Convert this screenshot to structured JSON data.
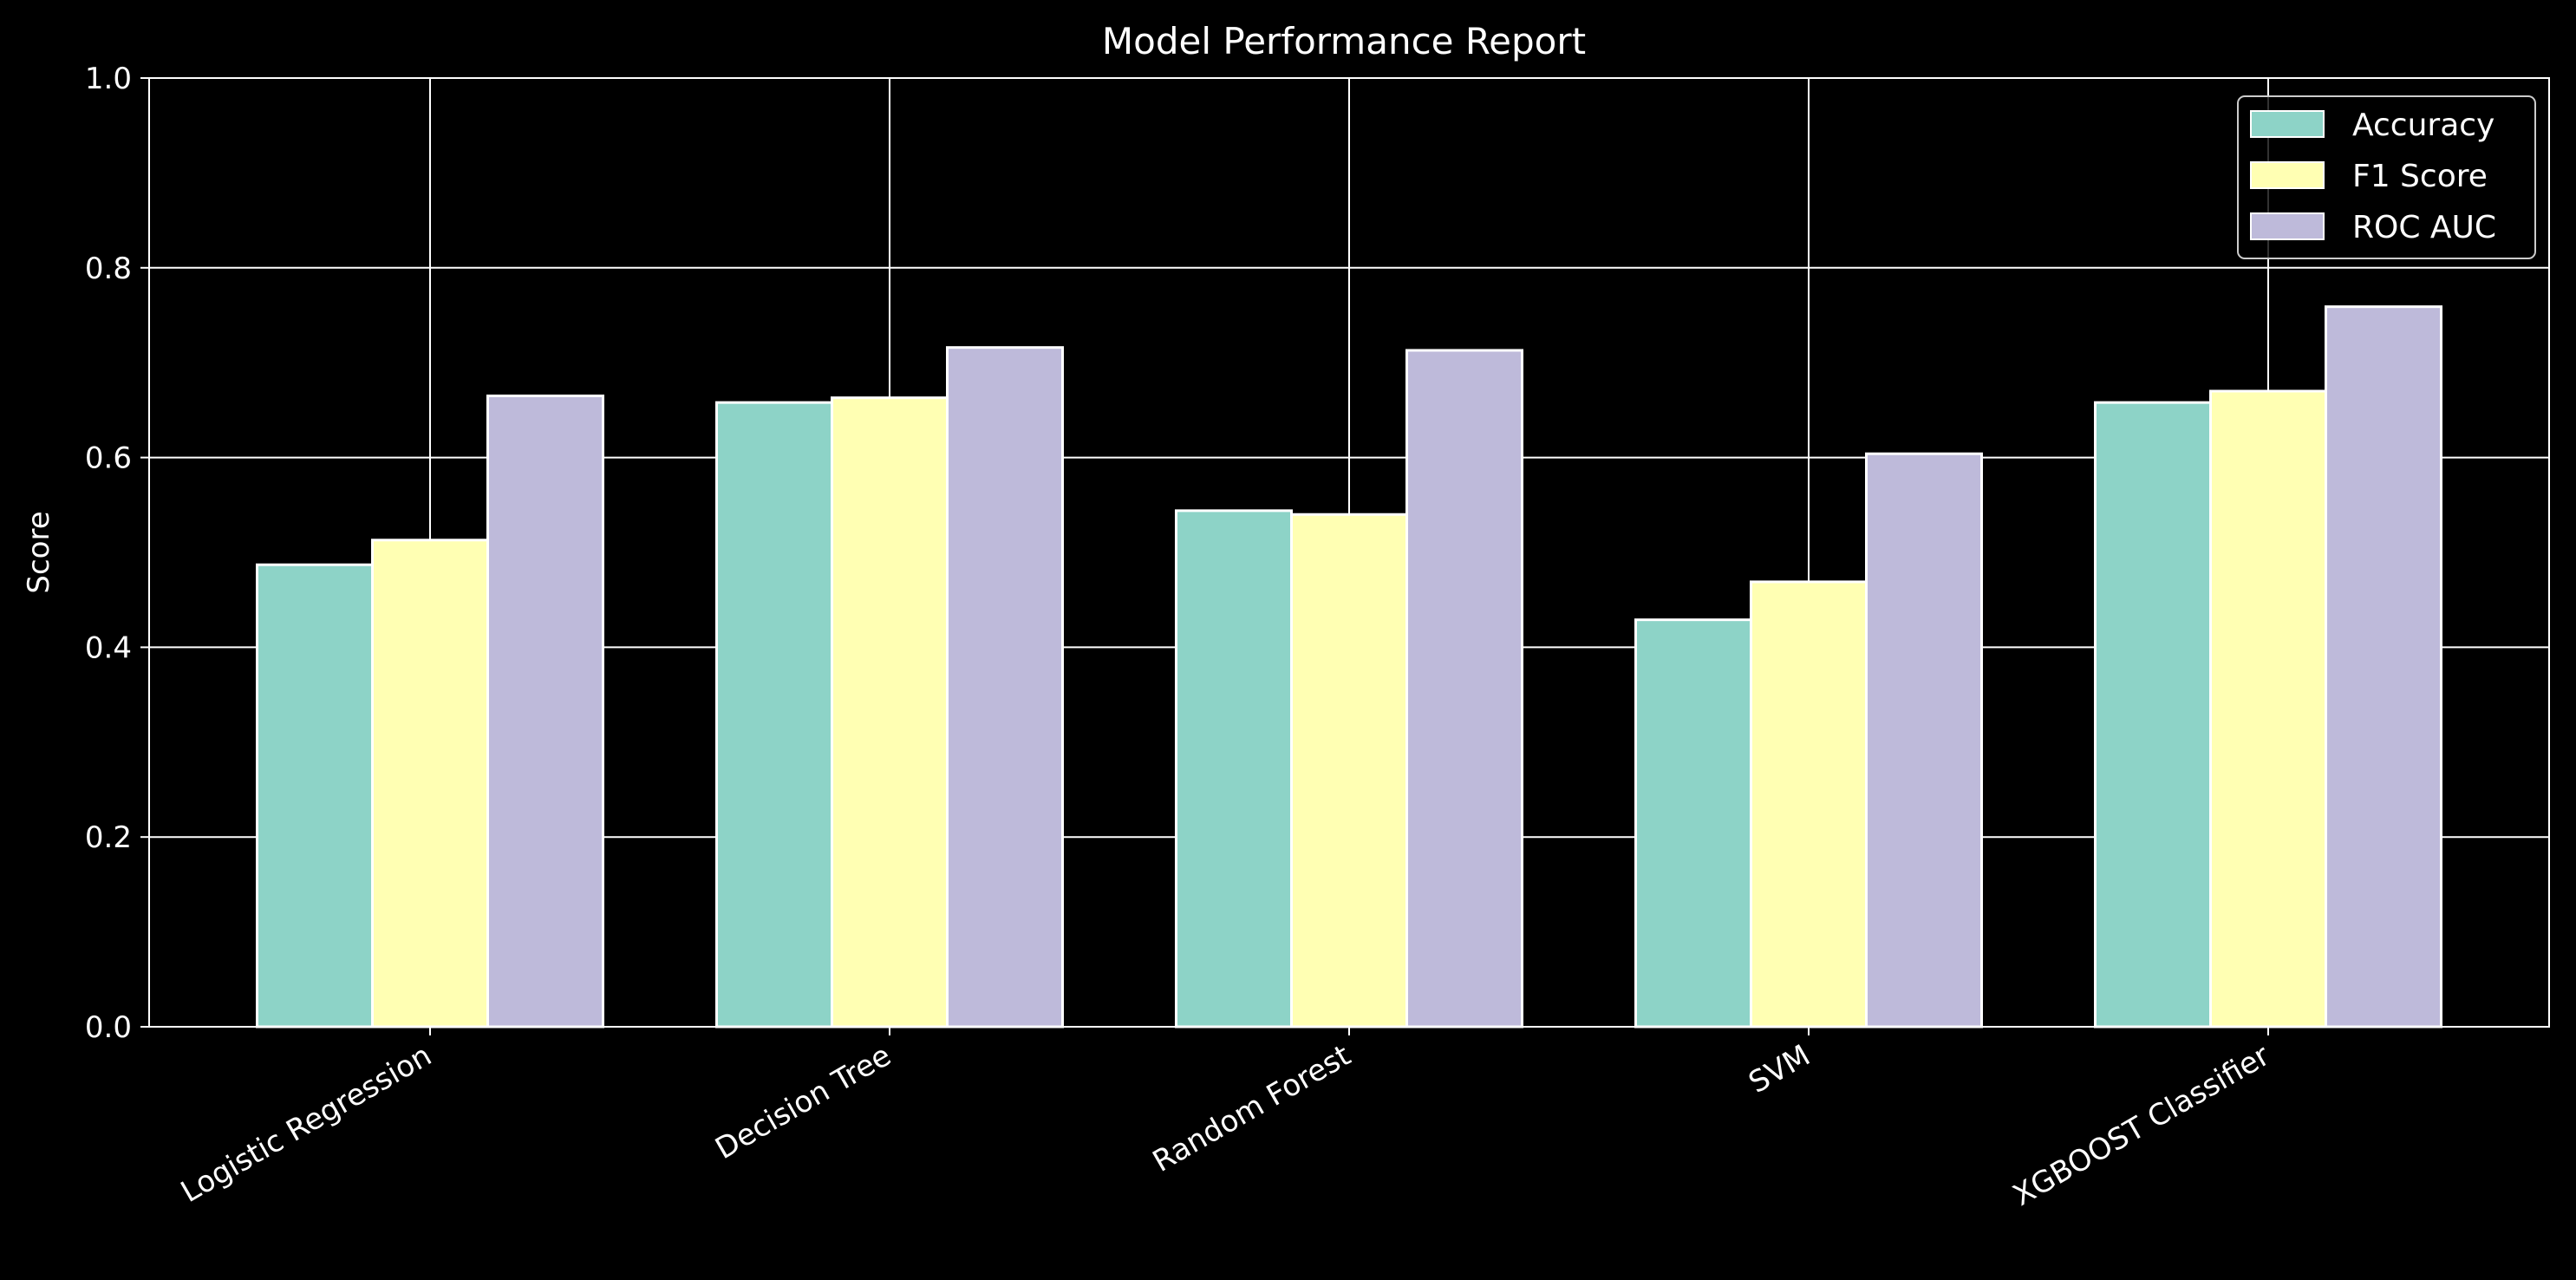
{
  "chart_data": {
    "type": "bar",
    "title": "Model Performance Report",
    "xlabel": "",
    "ylabel": "Score",
    "ylim": [
      0,
      1.0
    ],
    "yticks": [
      "0.0",
      "0.2",
      "0.4",
      "0.6",
      "0.8",
      "1.0"
    ],
    "ytick_values": [
      0,
      0.2,
      0.4,
      0.6,
      0.8,
      1.0
    ],
    "categories": [
      "Logistic Regression",
      "Decision Tree",
      "Random Forest",
      "SVM",
      "XGBOOST Classifier"
    ],
    "series": [
      {
        "name": "Accuracy",
        "color": "#8dd3c7",
        "values": [
          0.487,
          0.658,
          0.544,
          0.429,
          0.658
        ]
      },
      {
        "name": "F1 Score",
        "color": "#ffffb3",
        "values": [
          0.513,
          0.663,
          0.54,
          0.469,
          0.67
        ]
      },
      {
        "name": "ROC AUC",
        "color": "#bebada",
        "values": [
          0.665,
          0.716,
          0.713,
          0.604,
          0.759
        ]
      }
    ],
    "grid": true,
    "legend_position": "top-right",
    "background": "#000000",
    "foreground": "#ffffff"
  }
}
